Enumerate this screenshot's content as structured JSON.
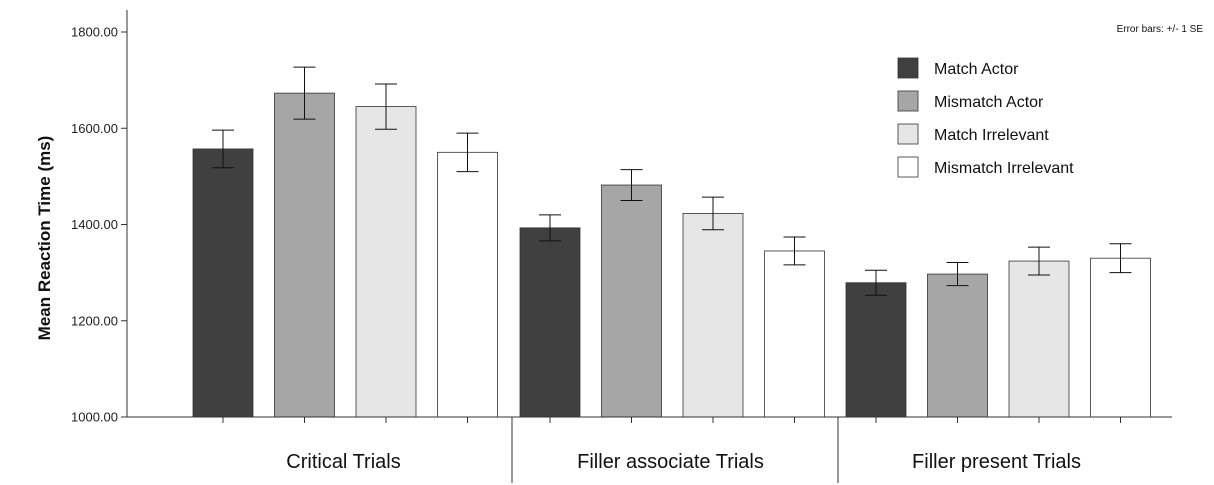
{
  "chart_data": {
    "type": "bar",
    "title": "",
    "xlabel": "",
    "ylabel": "Mean Reaction Time (ms)",
    "ylim": [
      1000,
      1800
    ],
    "yticks": [
      "1000.00",
      "1200.00",
      "1400.00",
      "1600.00",
      "1800.00"
    ],
    "categories": [
      "Critical Trials",
      "Filler associate Trials",
      "Filler present Trials"
    ],
    "note": "Error bars: +/- 1 SE",
    "legend_position": "top-right",
    "series": [
      {
        "name": "Match Actor",
        "color": "#404040",
        "values": [
          1557,
          1393,
          1279
        ],
        "se": [
          39,
          27,
          26
        ]
      },
      {
        "name": "Mismatch Actor",
        "color": "#a6a6a6",
        "values": [
          1673,
          1482,
          1297
        ],
        "se": [
          54,
          32,
          24
        ]
      },
      {
        "name": "Match Irrelevant",
        "color": "#e6e6e6",
        "values": [
          1645,
          1423,
          1324
        ],
        "se": [
          47,
          34,
          29
        ]
      },
      {
        "name": "Mismatch Irrelevant",
        "color": "#ffffff",
        "values": [
          1550,
          1345,
          1330
        ],
        "se": [
          40,
          29,
          30
        ]
      }
    ]
  }
}
